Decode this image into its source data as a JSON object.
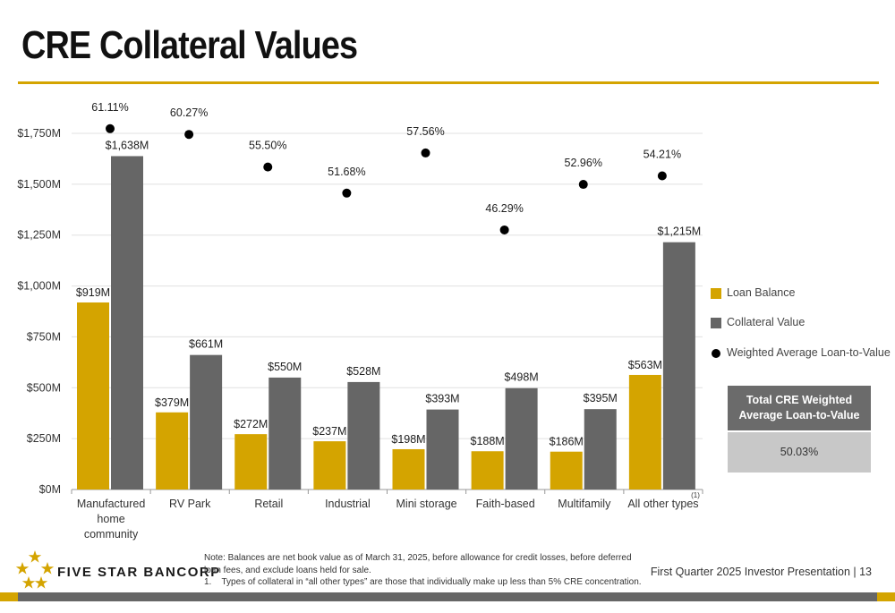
{
  "page": {
    "title": "CRE Collateral Values",
    "footnote_note": "Note: Balances are net book value as of March 31, 2025, before allowance for credit losses, before deferred loan fees, and exclude loans held for sale.",
    "footnote_1": "1.    Types of collateral in “all other types” are those that individually make up less than 5% CRE concentration.",
    "presentation": "First Quarter 2025 Investor Presentation | 13",
    "logo_text": "FIVE STAR BANCORP",
    "summary": {
      "header": "Total CRE Weighted Average Loan-to-Value",
      "value": "50.03%"
    }
  },
  "colors": {
    "loan": "#d4a400",
    "collateral": "#666666",
    "ltv": "#000000",
    "accent": "#d4a400",
    "grid": "#e0e0e0"
  },
  "chart_data": {
    "type": "bar",
    "categories": [
      [
        "Manufactured",
        "home",
        "community"
      ],
      [
        "RV Park"
      ],
      [
        "Retail"
      ],
      [
        "Industrial"
      ],
      [
        "Mini storage"
      ],
      [
        "Faith-based"
      ],
      [
        "Multifamily"
      ],
      [
        "All other types"
      ]
    ],
    "category_footnote": "(1)",
    "series": [
      {
        "name": "Loan Balance",
        "values": [
          919,
          379,
          272,
          237,
          198,
          188,
          186,
          563
        ],
        "labels": [
          "$919M",
          "$379M",
          "$272M",
          "$237M",
          "$198M",
          "$188M",
          "$186M",
          "$563M"
        ]
      },
      {
        "name": "Collateral Value",
        "values": [
          1638,
          661,
          550,
          528,
          393,
          498,
          395,
          1215
        ],
        "labels": [
          "$1,638M",
          "$661M",
          "$550M",
          "$528M",
          "$393M",
          "$498M",
          "$395M",
          "$1,215M"
        ]
      },
      {
        "name": "Weighted Average Loan-to-Value",
        "values": [
          61.11,
          60.27,
          55.5,
          51.68,
          57.56,
          46.29,
          52.96,
          54.21
        ],
        "labels": [
          "61.11%",
          "60.27%",
          "55.50%",
          "51.68%",
          "57.56%",
          "46.29%",
          "52.96%",
          "54.21%"
        ]
      }
    ],
    "yticks": [
      {
        "value": 0,
        "label": "$0M"
      },
      {
        "value": 250,
        "label": "$250M"
      },
      {
        "value": 500,
        "label": "$500M"
      },
      {
        "value": 750,
        "label": "$750M"
      },
      {
        "value": 1000,
        "label": "$1,000M"
      },
      {
        "value": 1250,
        "label": "$1,250M"
      },
      {
        "value": 1500,
        "label": "$1,500M"
      },
      {
        "value": 1750,
        "label": "$1,750M"
      }
    ],
    "ylim": [
      0,
      1750
    ],
    "ltv_range": [
      40,
      62
    ],
    "grid": true,
    "legend_position": "right"
  }
}
